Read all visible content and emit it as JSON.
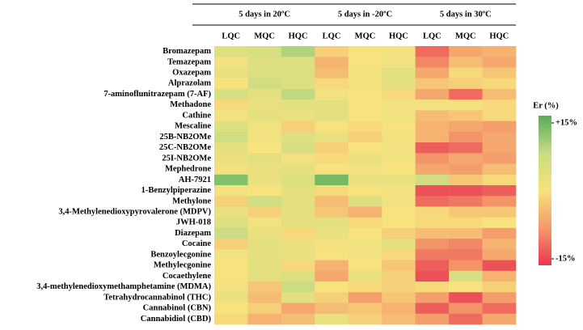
{
  "chart_data": {
    "type": "heatmap",
    "groups": [
      "5 days in 20ºC",
      "5 days in -20ºC",
      "5 days in 30ºC"
    ],
    "categories": [
      "LQC",
      "MQC",
      "HQC",
      "LQC",
      "MQC",
      "HQC",
      "LQC",
      "MQC",
      "HQC"
    ],
    "rows": [
      "Bromazepam",
      "Temazepam",
      "Oxazepam",
      "Alprazolam",
      "7-aminoflunitrazepam (7-AF)",
      "Methadone",
      "Cathine",
      "Mescaline",
      "25B-NB2OMe",
      "25C-NB2OMe",
      "25I-NB2OMe",
      "Mephedrone",
      "AH-7921",
      "1-Benzylpiperazine",
      "Methylone",
      "3,4-Methylenedioxypyrovalerone (MDPV)",
      "JWH-018",
      "Diazepam",
      "Cocaine",
      "Benzoylecgonine",
      "Methylecgonine",
      "Cocaethylene",
      "3,4-methylenedioxymethamphetamine (MDMA)",
      "Tetrahydrocannabinol (THC)",
      "Cannabinol (CBN)",
      "Cannabidiol (CBD)"
    ],
    "values": [
      [
        4,
        5,
        9,
        -2,
        0,
        1,
        -11,
        -6,
        -5
      ],
      [
        1,
        4,
        4,
        -5,
        0,
        1,
        -9,
        -4,
        -6
      ],
      [
        2,
        4,
        4,
        -4,
        1,
        3,
        -6,
        -1,
        -3
      ],
      [
        0,
        6,
        4,
        -1,
        1,
        3,
        -3,
        -2,
        -1
      ],
      [
        5,
        3,
        8,
        1,
        0,
        -1,
        -6,
        -11,
        -4
      ],
      [
        -1,
        2,
        3,
        3,
        0,
        1,
        1,
        1,
        -1
      ],
      [
        1,
        3,
        2,
        3,
        0,
        1,
        -4,
        -3,
        -1
      ],
      [
        4,
        1,
        -2,
        0,
        -1,
        0,
        -5,
        -6,
        -7
      ],
      [
        6,
        1,
        4,
        2,
        -2,
        1,
        -5,
        -8,
        -6
      ],
      [
        3,
        0,
        5,
        -2,
        0,
        1,
        -12,
        -11,
        -6
      ],
      [
        2,
        3,
        1,
        -1,
        2,
        1,
        -8,
        -6,
        -7
      ],
      [
        1,
        2,
        3,
        0,
        1,
        0,
        -6,
        -7,
        -4
      ],
      [
        12,
        2,
        4,
        13,
        2,
        2,
        6,
        -3,
        -1
      ],
      [
        1,
        0,
        3,
        -1,
        0,
        1,
        -13,
        -13,
        -12
      ],
      [
        -2,
        6,
        3,
        -4,
        4,
        1,
        -11,
        -10,
        -8
      ],
      [
        2,
        -2,
        3,
        -3,
        -5,
        0,
        -1,
        -3,
        -3
      ],
      [
        4,
        1,
        3,
        3,
        -1,
        0,
        -1,
        -1,
        0
      ],
      [
        7,
        2,
        -1,
        2,
        0,
        -2,
        -4,
        -4,
        -7
      ],
      [
        -2,
        3,
        2,
        1,
        1,
        3,
        -8,
        -9,
        -5
      ],
      [
        1,
        3,
        2,
        0,
        1,
        -1,
        -10,
        -10,
        -6
      ],
      [
        0,
        3,
        -1,
        -5,
        0,
        -3,
        -12,
        -8,
        -13
      ],
      [
        0,
        3,
        4,
        -6,
        2,
        -2,
        -13,
        5,
        -5
      ],
      [
        1,
        -3,
        7,
        0,
        -1,
        -2,
        -1,
        0,
        -2
      ],
      [
        2,
        -4,
        3,
        -2,
        -7,
        -3,
        -7,
        -13,
        -7
      ],
      [
        0,
        -2,
        -6,
        -4,
        -3,
        -5,
        -12,
        -8,
        -11
      ],
      [
        -1,
        -5,
        -4,
        2,
        -2,
        -4,
        -7,
        -11,
        -6
      ]
    ],
    "colorscale": [
      "#e8364f",
      "#f49a6a",
      "#f7e27e",
      "#c8dc84",
      "#5aab57"
    ],
    "colorbar": {
      "title": "Er (%)",
      "ticks": [
        {
          "value": 15,
          "label": "+15%"
        },
        {
          "value": -15,
          "label": "-15%"
        }
      ]
    }
  }
}
